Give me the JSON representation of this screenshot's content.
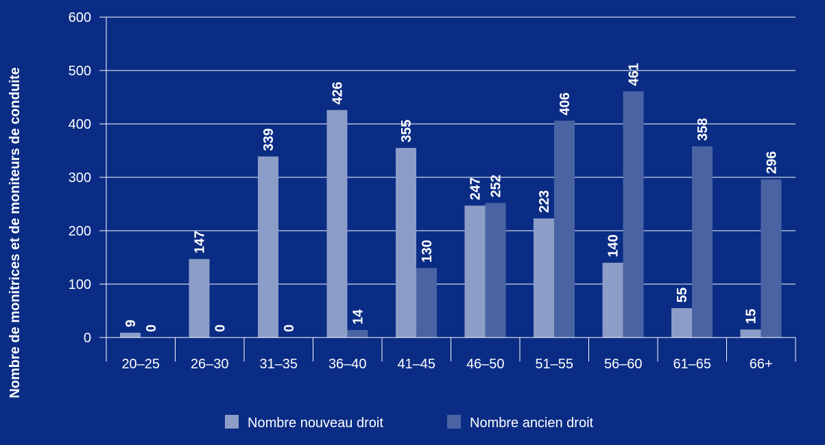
{
  "colors": {
    "background": "#0a2c84",
    "axis": "#ffffff",
    "grid": "#ffffff"
  },
  "chart_data": {
    "type": "bar",
    "title": "",
    "xlabel": "",
    "ylabel": "Nombre de monitrices et de moniteurs de conduite",
    "ylim": [
      0,
      600
    ],
    "yticks": [
      0,
      100,
      200,
      300,
      400,
      500,
      600
    ],
    "categories": [
      "20–25",
      "26–30",
      "31–35",
      "36–40",
      "41–45",
      "46–50",
      "51–55",
      "56–60",
      "61–65",
      "66+"
    ],
    "grid": true,
    "legend_position": "bottom",
    "series": [
      {
        "name": "Nombre nouveau droit",
        "color": "#8c9ec7",
        "values": [
          9,
          147,
          339,
          426,
          355,
          247,
          223,
          140,
          55,
          15
        ]
      },
      {
        "name": "Nombre ancien droit",
        "color": "#4a64a3",
        "values": [
          0,
          0,
          0,
          14,
          130,
          252,
          406,
          461,
          358,
          296
        ]
      }
    ]
  }
}
